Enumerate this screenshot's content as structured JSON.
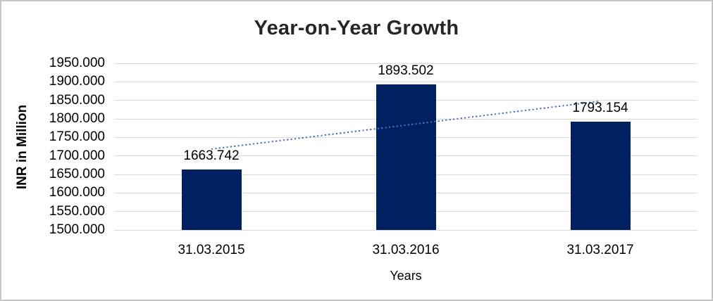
{
  "chart_data": {
    "type": "bar",
    "title": "Year-on-Year Growth",
    "xlabel": "Years",
    "ylabel": "INR in Million",
    "categories": [
      "31.03.2015",
      "31.03.2016",
      "31.03.2017"
    ],
    "values": [
      1663.742,
      1893.502,
      1793.154
    ],
    "data_labels": [
      "1663.742",
      "1893.502",
      "1793.154"
    ],
    "ylim": [
      1500,
      1950
    ],
    "ytick_step": 50,
    "ytick_decimals": 3,
    "ytick_labels": [
      "1500.000",
      "1550.000",
      "1600.000",
      "1650.000",
      "1700.000",
      "1750.000",
      "1800.000",
      "1850.000",
      "1900.000",
      "1950.000"
    ],
    "grid": "horizontal",
    "legend": "none",
    "trendline": {
      "type": "linear",
      "style": "dotted"
    },
    "colors": {
      "bar": "#002060",
      "trendline": "#4472C4",
      "gridline": "#d9d9d9",
      "title_text": "#262626",
      "axis_text": "#000000",
      "frame_border": "#c6c6c6",
      "background": "#ffffff"
    }
  }
}
